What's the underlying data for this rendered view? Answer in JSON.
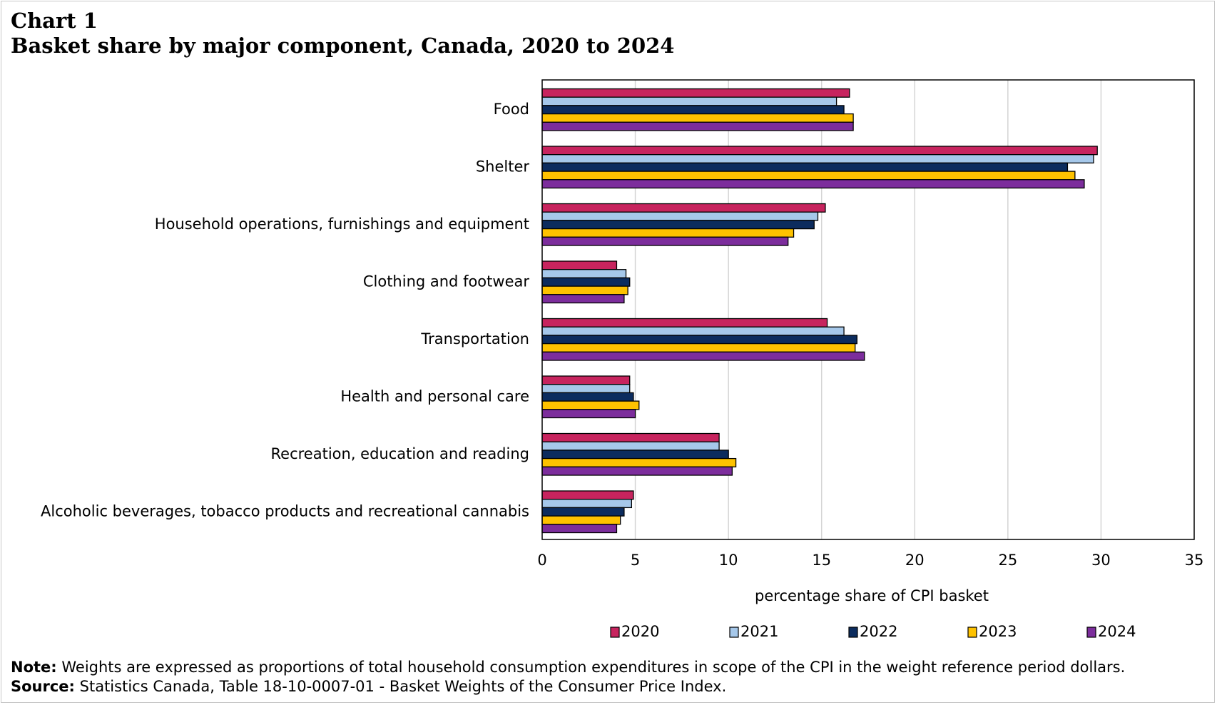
{
  "header": {
    "chart_number": "Chart 1",
    "title": "Basket share by major component, Canada, 2020 to 2024"
  },
  "footer": {
    "note_label": "Note:",
    "note_text": "Weights are expressed as proportions of total household consumption expenditures in scope of the CPI in the weight reference period dollars.",
    "source_label": "Source:",
    "source_text": "Statistics Canada, Table 18-10-0007-01 - Basket Weights of the Consumer Price Index."
  },
  "chart_data": {
    "type": "bar",
    "orientation": "horizontal",
    "title": "Basket share by major component, Canada, 2020 to 2024",
    "xlabel": "percentage share of CPI basket",
    "ylabel": "",
    "xlim": [
      0,
      35
    ],
    "x_ticks": [
      0,
      5,
      10,
      15,
      20,
      25,
      30,
      35
    ],
    "grid": "vertical",
    "legend_position": "bottom",
    "categories": [
      "Food",
      "Shelter",
      "Household operations, furnishings and equipment",
      "Clothing and footwear",
      "Transportation",
      "Health and personal care",
      "Recreation, education and reading",
      "Alcoholic beverages, tobacco products and recreational cannabis"
    ],
    "series": [
      {
        "name": "2020",
        "color": "#c7245e",
        "values": [
          16.5,
          29.8,
          15.2,
          4.0,
          15.3,
          4.7,
          9.5,
          4.9
        ]
      },
      {
        "name": "2021",
        "color": "#a6c8ea",
        "values": [
          15.8,
          29.6,
          14.8,
          4.5,
          16.2,
          4.7,
          9.5,
          4.8
        ]
      },
      {
        "name": "2022",
        "color": "#0c2c5e",
        "values": [
          16.2,
          28.2,
          14.6,
          4.7,
          16.9,
          4.9,
          10.0,
          4.4
        ]
      },
      {
        "name": "2023",
        "color": "#fec200",
        "values": [
          16.7,
          28.6,
          13.5,
          4.6,
          16.8,
          5.2,
          10.4,
          4.2
        ]
      },
      {
        "name": "2024",
        "color": "#7c2d9c",
        "values": [
          16.7,
          29.1,
          13.2,
          4.4,
          17.3,
          5.0,
          10.2,
          4.0
        ]
      }
    ]
  }
}
